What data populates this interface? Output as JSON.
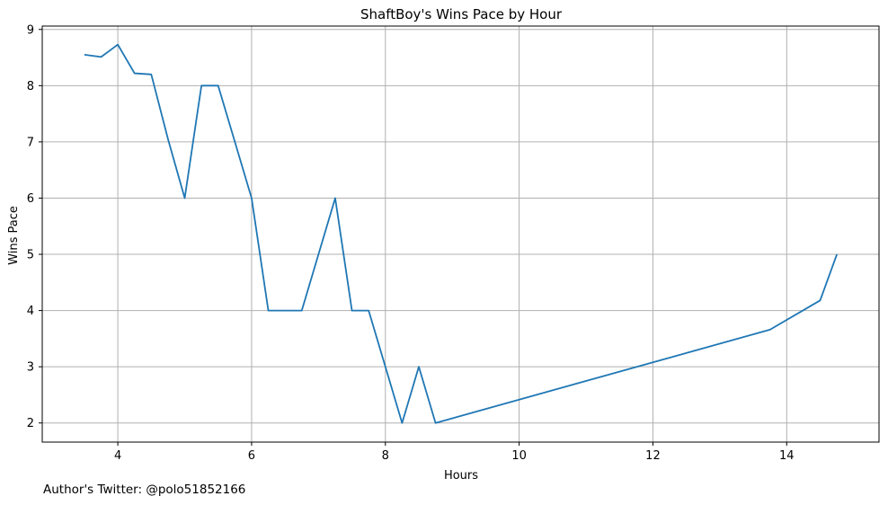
{
  "chart_data": {
    "type": "line",
    "title": "ShaftBoy's Wins Pace by Hour",
    "xlabel": "Hours",
    "ylabel": "Wins Pace",
    "xlim": [
      2.87,
      15.38
    ],
    "ylim": [
      1.66,
      9.06
    ],
    "xticks": [
      4,
      6,
      8,
      10,
      12,
      14
    ],
    "yticks": [
      2,
      3,
      4,
      5,
      6,
      7,
      8,
      9
    ],
    "grid": true,
    "legend": "none",
    "series": [
      {
        "color": "#1f77b4",
        "x": [
          3.5,
          3.75,
          4.0,
          4.25,
          4.5,
          4.75,
          5.0,
          5.25,
          5.5,
          5.75,
          6.0,
          6.25,
          6.5,
          6.75,
          7.0,
          7.25,
          7.5,
          7.75,
          8.0,
          8.25,
          8.5,
          8.75,
          13.75,
          14.5,
          14.75
        ],
        "y": [
          8.55,
          8.51,
          8.73,
          8.22,
          8.2,
          7.05,
          6.0,
          8.0,
          8.0,
          7.0,
          6.0,
          4.0,
          4.0,
          4.0,
          5.0,
          6.0,
          4.0,
          4.0,
          3.0,
          2.0,
          3.0,
          2.0,
          3.66,
          4.18,
          5.0
        ]
      }
    ]
  },
  "footnote": "Author's Twitter: @polo51852166",
  "colors": {
    "line": "#1f77b4",
    "grid": "#b0b0b0",
    "axes": "#000000"
  }
}
